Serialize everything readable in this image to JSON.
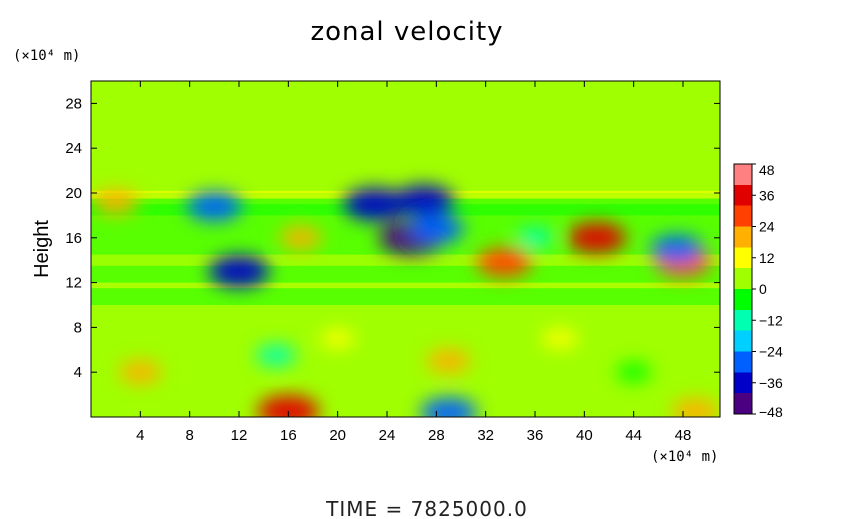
{
  "chart_data": {
    "type": "heatmap",
    "title": "zonal velocity",
    "ylabel": "Height",
    "x_unit": "(×10⁴ m)",
    "y_unit": "(×10⁴ m)",
    "x_ticks": [
      4,
      8,
      12,
      16,
      20,
      24,
      28,
      32,
      36,
      40,
      44,
      48
    ],
    "y_ticks": [
      4,
      8,
      12,
      16,
      20,
      24,
      28
    ],
    "xlim": [
      0,
      51
    ],
    "ylim": [
      0,
      30
    ],
    "colorbar": {
      "ticks": [
        48,
        36,
        24,
        12,
        0,
        -12,
        -24,
        -36,
        -48
      ],
      "range": [
        -48,
        48
      ],
      "colors": [
        "#4b0082",
        "#0000c8",
        "#0060ff",
        "#00d0ff",
        "#00ffb0",
        "#00ff00",
        "#a0ff00",
        "#ffff00",
        "#ffb000",
        "#ff4000",
        "#e00000",
        "#ff8080"
      ]
    },
    "background_value": 2,
    "features": [
      {
        "x": 16,
        "y": 0.5,
        "value": 38
      },
      {
        "x": 29,
        "y": 0.4,
        "value": -32
      },
      {
        "x": 4,
        "y": 4,
        "value": 16
      },
      {
        "x": 15,
        "y": 5.5,
        "value": -14
      },
      {
        "x": 29,
        "y": 5,
        "value": 18
      },
      {
        "x": 44,
        "y": 4,
        "value": -8
      },
      {
        "x": 49,
        "y": 0.5,
        "value": 22
      },
      {
        "x": 20,
        "y": 7,
        "value": 8
      },
      {
        "x": 38,
        "y": 7,
        "value": 10
      },
      {
        "x": 12,
        "y": 13,
        "value": -36
      },
      {
        "x": 33.5,
        "y": 13.8,
        "value": 30
      },
      {
        "x": 48,
        "y": 13.8,
        "value": 30
      },
      {
        "x": 26,
        "y": 16,
        "value": -42
      },
      {
        "x": 28,
        "y": 16.8,
        "value": -30
      },
      {
        "x": 41,
        "y": 16,
        "value": 34
      },
      {
        "x": 47.5,
        "y": 15,
        "value": -28
      },
      {
        "x": 23,
        "y": 19,
        "value": -38
      },
      {
        "x": 27,
        "y": 19.3,
        "value": -36
      },
      {
        "x": 10,
        "y": 18.8,
        "value": -30
      },
      {
        "x": 17,
        "y": 16,
        "value": 16
      },
      {
        "x": 36,
        "y": 16,
        "value": -10
      },
      {
        "x": 2,
        "y": 19.2,
        "value": 20
      }
    ],
    "grid": false
  },
  "footer": "TIME  =  7825000.0"
}
